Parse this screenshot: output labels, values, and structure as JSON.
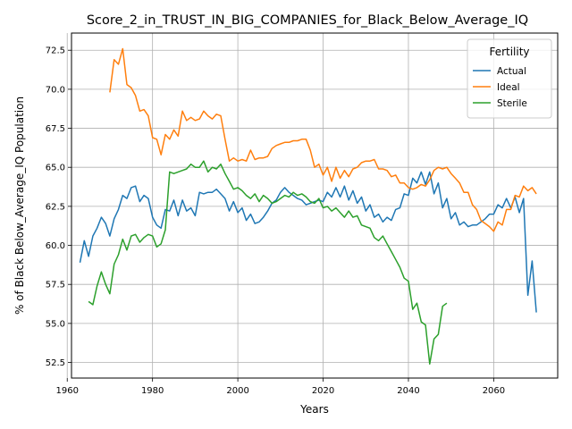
{
  "chart_data": {
    "type": "line",
    "title": "Score_2_in_TRUST_IN_BIG_COMPANIES_for_Black_Below_Average_IQ",
    "xlabel": "Years",
    "ylabel": "% of Black Below_Average_IQ Population",
    "xlim": [
      1961,
      2075
    ],
    "ylim": [
      51.5,
      73.6
    ],
    "xticks": [
      1960,
      1980,
      2000,
      2020,
      2040,
      2060
    ],
    "yticks": [
      52.5,
      55.0,
      57.5,
      60.0,
      62.5,
      65.0,
      67.5,
      70.0,
      72.5
    ],
    "ytick_labels": [
      "52.5",
      "55.0",
      "57.5",
      "60.0",
      "62.5",
      "65.0",
      "67.5",
      "70.0",
      "72.5"
    ],
    "grid": true,
    "legend": {
      "title": "Fertility",
      "position": "top-right"
    },
    "series": [
      {
        "name": "Actual",
        "color": "#1f77b4",
        "points": [
          [
            1963,
            58.9
          ],
          [
            1964,
            60.3
          ],
          [
            1965,
            59.3
          ],
          [
            1966,
            60.6
          ],
          [
            1967,
            61.1
          ],
          [
            1968,
            61.8
          ],
          [
            1969,
            61.4
          ],
          [
            1970,
            60.6
          ],
          [
            1971,
            61.7
          ],
          [
            1972,
            62.3
          ],
          [
            1973,
            63.2
          ],
          [
            1974,
            63.0
          ],
          [
            1975,
            63.7
          ],
          [
            1976,
            63.8
          ],
          [
            1977,
            62.8
          ],
          [
            1978,
            63.2
          ],
          [
            1979,
            63.0
          ],
          [
            1980,
            61.8
          ],
          [
            1981,
            61.3
          ],
          [
            1982,
            61.1
          ],
          [
            1983,
            62.3
          ],
          [
            1984,
            62.2
          ],
          [
            1985,
            62.9
          ],
          [
            1986,
            61.9
          ],
          [
            1987,
            62.9
          ],
          [
            1988,
            62.2
          ],
          [
            1989,
            62.4
          ],
          [
            1990,
            61.9
          ],
          [
            1991,
            63.4
          ],
          [
            1992,
            63.3
          ],
          [
            1993,
            63.4
          ],
          [
            1994,
            63.4
          ],
          [
            1995,
            63.6
          ],
          [
            1996,
            63.3
          ],
          [
            1997,
            63.0
          ],
          [
            1998,
            62.2
          ],
          [
            1999,
            62.8
          ],
          [
            2000,
            62.1
          ],
          [
            2001,
            62.4
          ],
          [
            2002,
            61.6
          ],
          [
            2003,
            62.0
          ],
          [
            2004,
            61.4
          ],
          [
            2005,
            61.5
          ],
          [
            2006,
            61.8
          ],
          [
            2007,
            62.2
          ],
          [
            2008,
            62.7
          ],
          [
            2009,
            62.9
          ],
          [
            2010,
            63.4
          ],
          [
            2011,
            63.7
          ],
          [
            2012,
            63.4
          ],
          [
            2013,
            63.2
          ],
          [
            2014,
            63.0
          ],
          [
            2015,
            62.9
          ],
          [
            2016,
            62.6
          ],
          [
            2017,
            62.7
          ],
          [
            2018,
            62.8
          ],
          [
            2019,
            62.9
          ],
          [
            2020,
            62.8
          ],
          [
            2021,
            63.4
          ],
          [
            2022,
            63.1
          ],
          [
            2023,
            63.7
          ],
          [
            2024,
            63.1
          ],
          [
            2025,
            63.8
          ],
          [
            2026,
            62.9
          ],
          [
            2027,
            63.5
          ],
          [
            2028,
            62.7
          ],
          [
            2029,
            63.1
          ],
          [
            2030,
            62.2
          ],
          [
            2031,
            62.6
          ],
          [
            2032,
            61.8
          ],
          [
            2033,
            62.0
          ],
          [
            2034,
            61.5
          ],
          [
            2035,
            61.8
          ],
          [
            2036,
            61.6
          ],
          [
            2037,
            62.3
          ],
          [
            2038,
            62.4
          ],
          [
            2039,
            63.3
          ],
          [
            2040,
            63.2
          ],
          [
            2041,
            64.3
          ],
          [
            2042,
            64.0
          ],
          [
            2043,
            64.7
          ],
          [
            2044,
            63.9
          ],
          [
            2045,
            64.7
          ],
          [
            2046,
            63.3
          ],
          [
            2047,
            64.0
          ],
          [
            2048,
            62.4
          ],
          [
            2049,
            63.0
          ],
          [
            2050,
            61.7
          ],
          [
            2051,
            62.1
          ],
          [
            2052,
            61.3
          ],
          [
            2053,
            61.5
          ],
          [
            2054,
            61.2
          ],
          [
            2055,
            61.3
          ],
          [
            2056,
            61.3
          ],
          [
            2057,
            61.5
          ],
          [
            2058,
            61.7
          ],
          [
            2059,
            62.0
          ],
          [
            2060,
            62.0
          ],
          [
            2061,
            62.6
          ],
          [
            2062,
            62.4
          ],
          [
            2063,
            63.0
          ],
          [
            2064,
            62.4
          ],
          [
            2065,
            63.1
          ],
          [
            2066,
            62.1
          ],
          [
            2067,
            63.0
          ],
          [
            2068,
            56.8
          ],
          [
            2069,
            59.0
          ],
          [
            2070,
            55.7
          ]
        ]
      },
      {
        "name": "Ideal",
        "color": "#ff7f0e",
        "points": [
          [
            1970,
            69.8
          ],
          [
            1971,
            71.9
          ],
          [
            1972,
            71.6
          ],
          [
            1973,
            72.6
          ],
          [
            1974,
            70.3
          ],
          [
            1975,
            70.1
          ],
          [
            1976,
            69.6
          ],
          [
            1977,
            68.6
          ],
          [
            1978,
            68.7
          ],
          [
            1979,
            68.3
          ],
          [
            1980,
            66.9
          ],
          [
            1981,
            66.8
          ],
          [
            1982,
            65.8
          ],
          [
            1983,
            67.1
          ],
          [
            1984,
            66.8
          ],
          [
            1985,
            67.4
          ],
          [
            1986,
            67.0
          ],
          [
            1987,
            68.6
          ],
          [
            1988,
            68.0
          ],
          [
            1989,
            68.2
          ],
          [
            1990,
            68.0
          ],
          [
            1991,
            68.1
          ],
          [
            1992,
            68.6
          ],
          [
            1993,
            68.3
          ],
          [
            1994,
            68.1
          ],
          [
            1995,
            68.4
          ],
          [
            1996,
            68.3
          ],
          [
            1997,
            66.8
          ],
          [
            1998,
            65.4
          ],
          [
            1999,
            65.6
          ],
          [
            2000,
            65.4
          ],
          [
            2001,
            65.5
          ],
          [
            2002,
            65.4
          ],
          [
            2003,
            66.1
          ],
          [
            2004,
            65.5
          ],
          [
            2005,
            65.6
          ],
          [
            2006,
            65.6
          ],
          [
            2007,
            65.7
          ],
          [
            2008,
            66.2
          ],
          [
            2009,
            66.4
          ],
          [
            2010,
            66.5
          ],
          [
            2011,
            66.6
          ],
          [
            2012,
            66.6
          ],
          [
            2013,
            66.7
          ],
          [
            2014,
            66.7
          ],
          [
            2015,
            66.8
          ],
          [
            2016,
            66.8
          ],
          [
            2017,
            66.1
          ],
          [
            2018,
            65.0
          ],
          [
            2019,
            65.2
          ],
          [
            2020,
            64.5
          ],
          [
            2021,
            65.0
          ],
          [
            2022,
            64.1
          ],
          [
            2023,
            65.0
          ],
          [
            2024,
            64.3
          ],
          [
            2025,
            64.8
          ],
          [
            2026,
            64.4
          ],
          [
            2027,
            64.9
          ],
          [
            2028,
            65.0
          ],
          [
            2029,
            65.3
          ],
          [
            2030,
            65.4
          ],
          [
            2031,
            65.4
          ],
          [
            2032,
            65.5
          ],
          [
            2033,
            64.9
          ],
          [
            2034,
            64.9
          ],
          [
            2035,
            64.8
          ],
          [
            2036,
            64.4
          ],
          [
            2037,
            64.5
          ],
          [
            2038,
            64.0
          ],
          [
            2039,
            64.0
          ],
          [
            2040,
            63.7
          ],
          [
            2041,
            63.6
          ],
          [
            2042,
            63.7
          ],
          [
            2043,
            63.9
          ],
          [
            2044,
            63.8
          ],
          [
            2045,
            64.2
          ],
          [
            2046,
            64.8
          ],
          [
            2047,
            65.0
          ],
          [
            2048,
            64.9
          ],
          [
            2049,
            65.0
          ],
          [
            2050,
            64.6
          ],
          [
            2051,
            64.3
          ],
          [
            2052,
            64.0
          ],
          [
            2053,
            63.4
          ],
          [
            2054,
            63.4
          ],
          [
            2055,
            62.6
          ],
          [
            2056,
            62.3
          ],
          [
            2057,
            61.6
          ],
          [
            2058,
            61.4
          ],
          [
            2059,
            61.2
          ],
          [
            2060,
            60.9
          ],
          [
            2061,
            61.5
          ],
          [
            2062,
            61.3
          ],
          [
            2063,
            62.3
          ],
          [
            2064,
            62.3
          ],
          [
            2065,
            63.2
          ],
          [
            2066,
            63.1
          ],
          [
            2067,
            63.8
          ],
          [
            2068,
            63.5
          ],
          [
            2069,
            63.7
          ],
          [
            2070,
            63.3
          ]
        ]
      },
      {
        "name": "Sterile",
        "color": "#2ca02c",
        "segments": [
          [
            [
              1965,
              56.4
            ],
            [
              1966,
              56.2
            ],
            [
              1967,
              57.4
            ],
            [
              1968,
              58.3
            ],
            [
              1969,
              57.5
            ],
            [
              1970,
              56.9
            ],
            [
              1971,
              58.8
            ],
            [
              1972,
              59.4
            ],
            [
              1973,
              60.4
            ],
            [
              1974,
              59.7
            ],
            [
              1975,
              60.6
            ],
            [
              1976,
              60.7
            ],
            [
              1977,
              60.2
            ],
            [
              1978,
              60.5
            ],
            [
              1979,
              60.7
            ],
            [
              1980,
              60.6
            ],
            [
              1981,
              59.9
            ],
            [
              1982,
              60.1
            ],
            [
              1983,
              61.0
            ],
            [
              1984,
              64.7
            ],
            [
              1985,
              64.6
            ],
            [
              1986,
              64.7
            ],
            [
              1987,
              64.8
            ],
            [
              1988,
              64.9
            ],
            [
              1989,
              65.2
            ],
            [
              1990,
              65.0
            ],
            [
              1991,
              65.0
            ],
            [
              1992,
              65.4
            ],
            [
              1993,
              64.7
            ],
            [
              1994,
              65.0
            ],
            [
              1995,
              64.9
            ],
            [
              1996,
              65.2
            ],
            [
              1997,
              64.6
            ],
            [
              1998,
              64.1
            ],
            [
              1999,
              63.6
            ],
            [
              2000,
              63.7
            ],
            [
              2001,
              63.5
            ],
            [
              2002,
              63.2
            ],
            [
              2003,
              63.0
            ],
            [
              2004,
              63.3
            ],
            [
              2005,
              62.8
            ],
            [
              2006,
              63.2
            ],
            [
              2007,
              63.0
            ],
            [
              2008,
              62.7
            ],
            [
              2009,
              62.8
            ],
            [
              2010,
              63.0
            ],
            [
              2011,
              63.2
            ],
            [
              2012,
              63.1
            ],
            [
              2013,
              63.4
            ],
            [
              2014,
              63.2
            ],
            [
              2015,
              63.3
            ],
            [
              2016,
              63.1
            ],
            [
              2017,
              62.8
            ],
            [
              2018,
              62.7
            ],
            [
              2019,
              63.0
            ],
            [
              2020,
              62.4
            ],
            [
              2021,
              62.5
            ],
            [
              2022,
              62.2
            ],
            [
              2023,
              62.4
            ],
            [
              2024,
              62.1
            ],
            [
              2025,
              61.8
            ],
            [
              2026,
              62.2
            ],
            [
              2027,
              61.8
            ],
            [
              2028,
              61.9
            ],
            [
              2029,
              61.3
            ],
            [
              2030,
              61.2
            ],
            [
              2031,
              61.1
            ],
            [
              2032,
              60.5
            ],
            [
              2033,
              60.3
            ],
            [
              2034,
              60.6
            ],
            [
              2035,
              60.1
            ],
            [
              2036,
              59.6
            ],
            [
              2037,
              59.1
            ],
            [
              2038,
              58.6
            ],
            [
              2039,
              57.9
            ],
            [
              2040,
              57.7
            ],
            [
              2041,
              55.9
            ],
            [
              2042,
              56.3
            ],
            [
              2043,
              55.1
            ],
            [
              2044,
              54.9
            ],
            [
              2045,
              52.4
            ],
            [
              2046,
              54.0
            ],
            [
              2047,
              54.3
            ],
            [
              2048,
              56.1
            ],
            [
              2049,
              56.3
            ]
          ]
        ]
      }
    ]
  }
}
